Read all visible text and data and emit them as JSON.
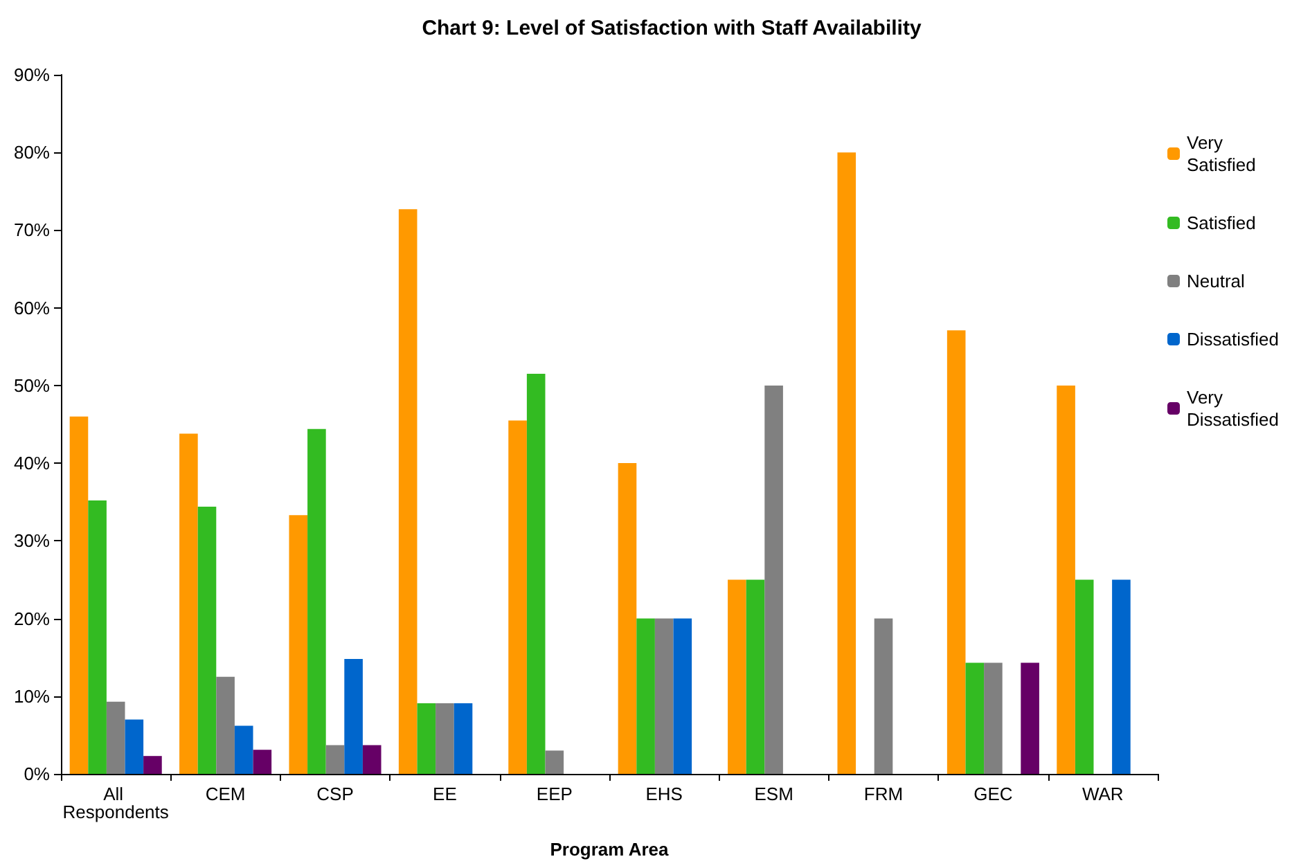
{
  "chart_data": {
    "type": "bar",
    "title": "Chart 9: Level of Satisfaction with Staff Availability",
    "xlabel": "Program Area",
    "categories": [
      "All Respondents",
      "CEM",
      "CSP",
      "EE",
      "EEP",
      "EHS",
      "ESM",
      "FRM",
      "GEC",
      "WAR"
    ],
    "series": [
      {
        "name": "Very Satisfied",
        "color": "#ff9900",
        "values": [
          46,
          43.8,
          33.3,
          72.7,
          45.5,
          40,
          25,
          80,
          57.1,
          50
        ]
      },
      {
        "name": "Satisfied",
        "color": "#33bb22",
        "values": [
          35.2,
          34.4,
          44.4,
          9.1,
          51.5,
          20,
          25,
          0,
          14.3,
          25
        ]
      },
      {
        "name": "Neutral",
        "color": "#808080",
        "values": [
          9.3,
          12.5,
          3.7,
          9.1,
          3,
          20,
          50,
          20,
          14.3,
          0
        ]
      },
      {
        "name": "Dissatisfied",
        "color": "#0066cc",
        "values": [
          7,
          6.2,
          14.8,
          9.1,
          0,
          20,
          0,
          0,
          0,
          25
        ]
      },
      {
        "name": "Very Dissatisfied",
        "color": "#660066",
        "values": [
          2.3,
          3.1,
          3.7,
          0,
          0,
          0,
          0,
          0,
          14.3,
          0
        ]
      }
    ],
    "ylim": [
      0,
      90
    ],
    "yticks": [
      {
        "value": 0,
        "label": "0%"
      },
      {
        "value": 10,
        "label": "10%"
      },
      {
        "value": 20,
        "label": "20%"
      },
      {
        "value": 30,
        "label": "30%"
      },
      {
        "value": 40,
        "label": "40%"
      },
      {
        "value": 50,
        "label": "50%"
      },
      {
        "value": 60,
        "label": "60%"
      },
      {
        "value": 70,
        "label": "70%"
      },
      {
        "value": 80,
        "label": "80%"
      },
      {
        "value": 90,
        "label": "90%"
      }
    ],
    "grid": false,
    "legend": "right"
  }
}
